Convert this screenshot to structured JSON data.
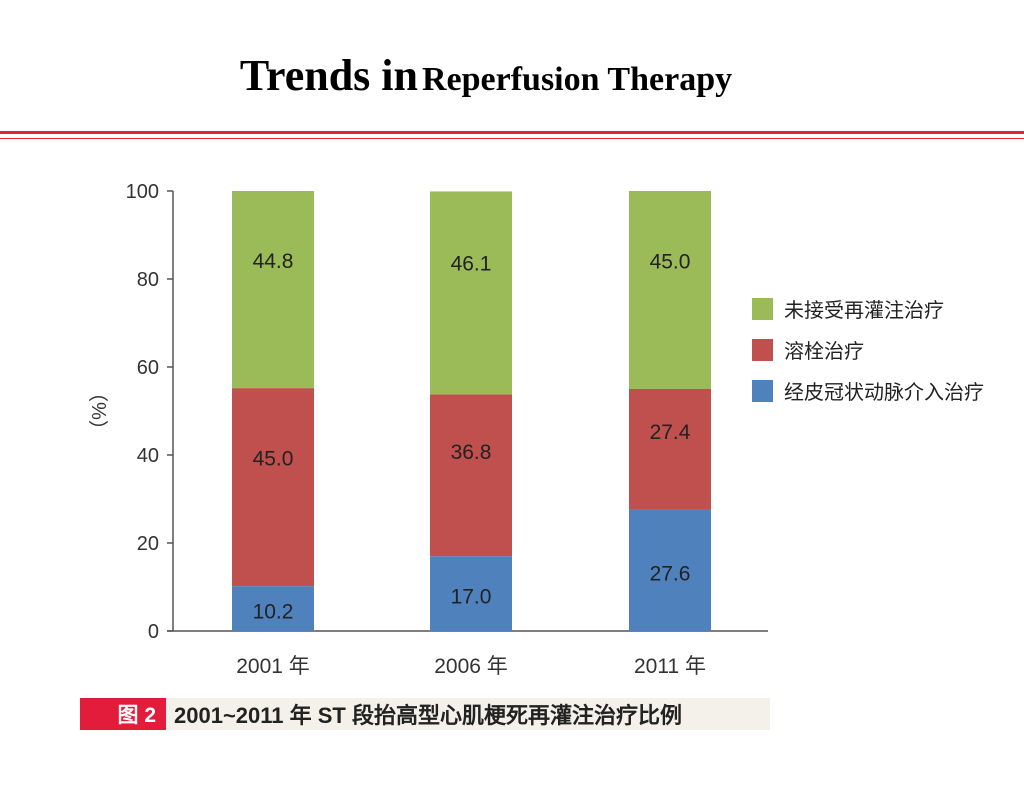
{
  "header": {
    "title_part1": "Trends in",
    "title_part2": "Reperfusion Therapy"
  },
  "caption": {
    "tag": "图 2",
    "text": "2001~2011 年 ST 段抬高型心肌梗死再灌注治疗比例"
  },
  "colors": {
    "rule": "#e3262b",
    "caption_tag": "#e21c3a"
  },
  "chart_data": {
    "type": "bar",
    "stacked": true,
    "categories": [
      "2001 年",
      "2006 年",
      "2011 年"
    ],
    "ylabel": "（%）",
    "ylim": [
      0,
      100
    ],
    "yticks": [
      0,
      20,
      40,
      60,
      80,
      100
    ],
    "grid": false,
    "legend_position": "right",
    "series": [
      {
        "name": "经皮冠状动脉介入治疗",
        "values": [
          10.2,
          17.0,
          27.6
        ],
        "labels": [
          "10.2",
          "17.0",
          "27.6"
        ],
        "color": "#4f81bd"
      },
      {
        "name": "溶栓治疗",
        "values": [
          45.0,
          36.8,
          27.4
        ],
        "labels": [
          "45.0",
          "36.8",
          "27.4"
        ],
        "color": "#c0504d"
      },
      {
        "name": "未接受再灌注治疗",
        "values": [
          44.8,
          46.1,
          45.0
        ],
        "labels": [
          "44.8",
          "46.1",
          "45.0"
        ],
        "color": "#9bbb59"
      }
    ],
    "legend_order": [
      2,
      1,
      0
    ]
  }
}
